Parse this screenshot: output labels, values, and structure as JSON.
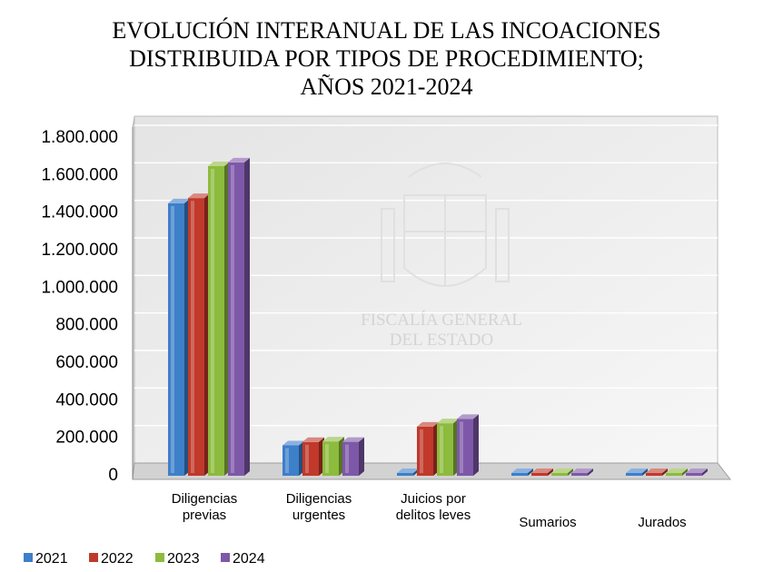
{
  "chart_data": {
    "type": "bar",
    "title": [
      "EVOLUCIÓN INTERANUAL DE LAS INCOACIONES",
      "DISTRIBUIDA POR TIPOS DE PROCEDIMIENTO;",
      "AÑOS 2021-2024"
    ],
    "categories": [
      [
        "Diligencias",
        "previas"
      ],
      [
        "Diligencias",
        "urgentes"
      ],
      [
        "Juicios por",
        "delitos leves"
      ],
      [
        "Sumarios"
      ],
      [
        "Jurados"
      ]
    ],
    "series": [
      {
        "name": "2021",
        "color": "#3d7fc9",
        "values": [
          1452000,
          162000,
          0,
          9000,
          2500
        ]
      },
      {
        "name": "2022",
        "color": "#c0392b",
        "values": [
          1480000,
          180000,
          262000,
          9500,
          2500
        ]
      },
      {
        "name": "2023",
        "color": "#8dbb3d",
        "values": [
          1650000,
          183000,
          280000,
          10000,
          2600
        ]
      },
      {
        "name": "2024",
        "color": "#7e58a8",
        "values": [
          1670000,
          181000,
          303000,
          10000,
          2700
        ]
      }
    ],
    "y_ticks": [
      "0",
      "200.000",
      "400.000",
      "600.000",
      "800.000",
      "1.000.000",
      "1.200.000",
      "1.400.000",
      "1.600.000",
      "1.800.000"
    ],
    "ylim": [
      0,
      1800000
    ],
    "xlabel": "",
    "ylabel": "",
    "legend_position": "bottom-left",
    "watermark": [
      "FISCALÍA GENERAL",
      "DEL ESTADO"
    ]
  }
}
